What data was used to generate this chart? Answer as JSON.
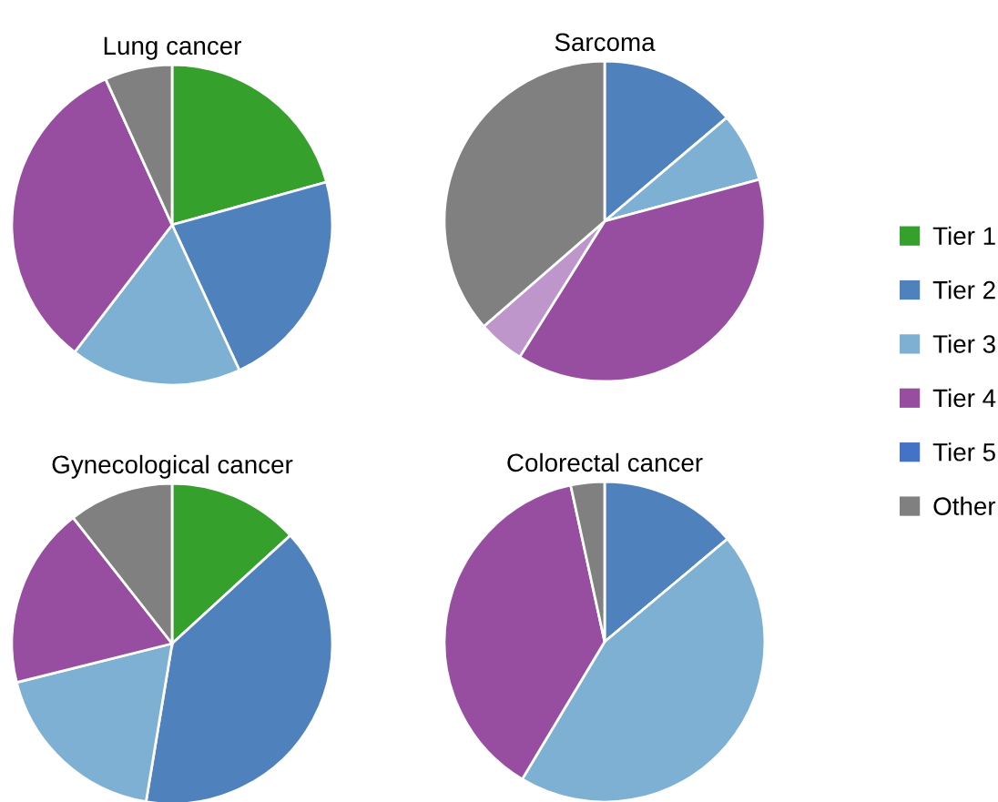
{
  "chart_data": [
    {
      "type": "pie",
      "title": "Lung cancer",
      "legend": "right",
      "categories": [
        "Tier 1",
        "Tier 2",
        "Tier 3",
        "Tier 4",
        "Tier 5",
        "Other"
      ],
      "values": [
        20.7,
        22.4,
        17.3,
        32.8,
        0,
        6.8
      ],
      "colors": [
        "#36a02c",
        "#4f81bd",
        "#7eb0d4",
        "#974ea1",
        "#4472c4",
        "#808080"
      ]
    },
    {
      "type": "pie",
      "title": "Sarcoma",
      "categories": [
        null,
        null,
        null,
        null,
        null
      ],
      "values": [
        13.8,
        7.0,
        38.1,
        4.7,
        36.4
      ],
      "colors": [
        "#4f81bd",
        "#7eb0d4",
        "#974ea1",
        "#bf96cc",
        "#808080"
      ]
    },
    {
      "type": "pie",
      "title": "Gynecological cancer",
      "categories": [
        null,
        null,
        null,
        null,
        null
      ],
      "values": [
        13.2,
        39.4,
        18.5,
        18.3,
        10.6
      ],
      "colors": [
        "#36a02c",
        "#4f81bd",
        "#7eb0d4",
        "#974ea1",
        "#808080"
      ]
    },
    {
      "type": "pie",
      "title": "Colorectal cancer",
      "categories": [
        null,
        null,
        null,
        null
      ],
      "values": [
        13.9,
        44.7,
        38.0,
        3.4
      ],
      "colors": [
        "#4f81bd",
        "#7eb0d4",
        "#974ea1",
        "#808080"
      ]
    }
  ]
}
